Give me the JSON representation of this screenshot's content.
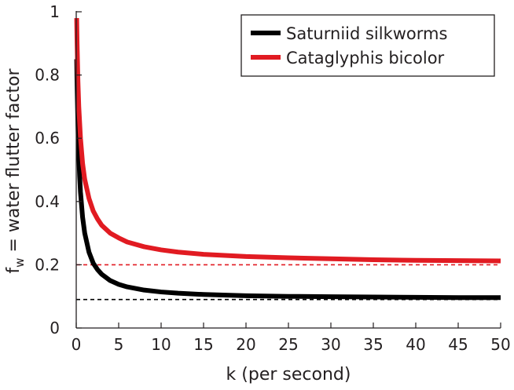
{
  "chart_data": {
    "type": "line",
    "title": "",
    "xlabel": "k (per second)",
    "ylabel": "f",
    "ylabel_subscript": "w",
    "ylabel_rest": " = water flutter factor",
    "xlim": [
      0,
      50
    ],
    "ylim": [
      0,
      1
    ],
    "x_ticks": [
      0,
      5,
      10,
      15,
      20,
      25,
      30,
      35,
      40,
      45,
      50
    ],
    "y_ticks": [
      0,
      0.2,
      0.4,
      0.6,
      0.8,
      1
    ],
    "y_tick_labels": [
      "0",
      "0.2",
      "0.4",
      "0.6",
      "0.8",
      "1"
    ],
    "grid": false,
    "legend_position": "top-right",
    "series": [
      {
        "name": "Saturniid silkworms",
        "color": "#000000",
        "x": [
          0.05,
          0.1,
          0.2,
          0.3,
          0.4,
          0.5,
          0.75,
          1,
          1.5,
          2,
          2.5,
          3,
          4,
          5,
          6,
          8,
          10,
          12,
          15,
          20,
          25,
          30,
          35,
          40,
          45,
          50
        ],
        "y": [
          0.85,
          0.77,
          0.64,
          0.55,
          0.48,
          0.43,
          0.35,
          0.3,
          0.24,
          0.205,
          0.185,
          0.17,
          0.15,
          0.138,
          0.13,
          0.12,
          0.114,
          0.11,
          0.106,
          0.102,
          0.1,
          0.099,
          0.098,
          0.097,
          0.096,
          0.096
        ]
      },
      {
        "name": "Cataglyphis bicolor",
        "color": "#e11b22",
        "x": [
          0.05,
          0.1,
          0.2,
          0.3,
          0.5,
          0.75,
          1,
          1.5,
          2,
          2.5,
          3,
          4,
          5,
          6,
          8,
          10,
          12,
          15,
          20,
          25,
          30,
          35,
          40,
          45,
          50
        ],
        "y": [
          0.98,
          0.9,
          0.78,
          0.7,
          0.6,
          0.52,
          0.47,
          0.41,
          0.37,
          0.345,
          0.325,
          0.3,
          0.285,
          0.272,
          0.257,
          0.247,
          0.24,
          0.233,
          0.226,
          0.222,
          0.219,
          0.216,
          0.214,
          0.213,
          0.212
        ]
      }
    ],
    "asymptotes": [
      {
        "y": 0.09,
        "color": "#000000"
      },
      {
        "y": 0.2,
        "color": "#e11b22"
      }
    ]
  }
}
